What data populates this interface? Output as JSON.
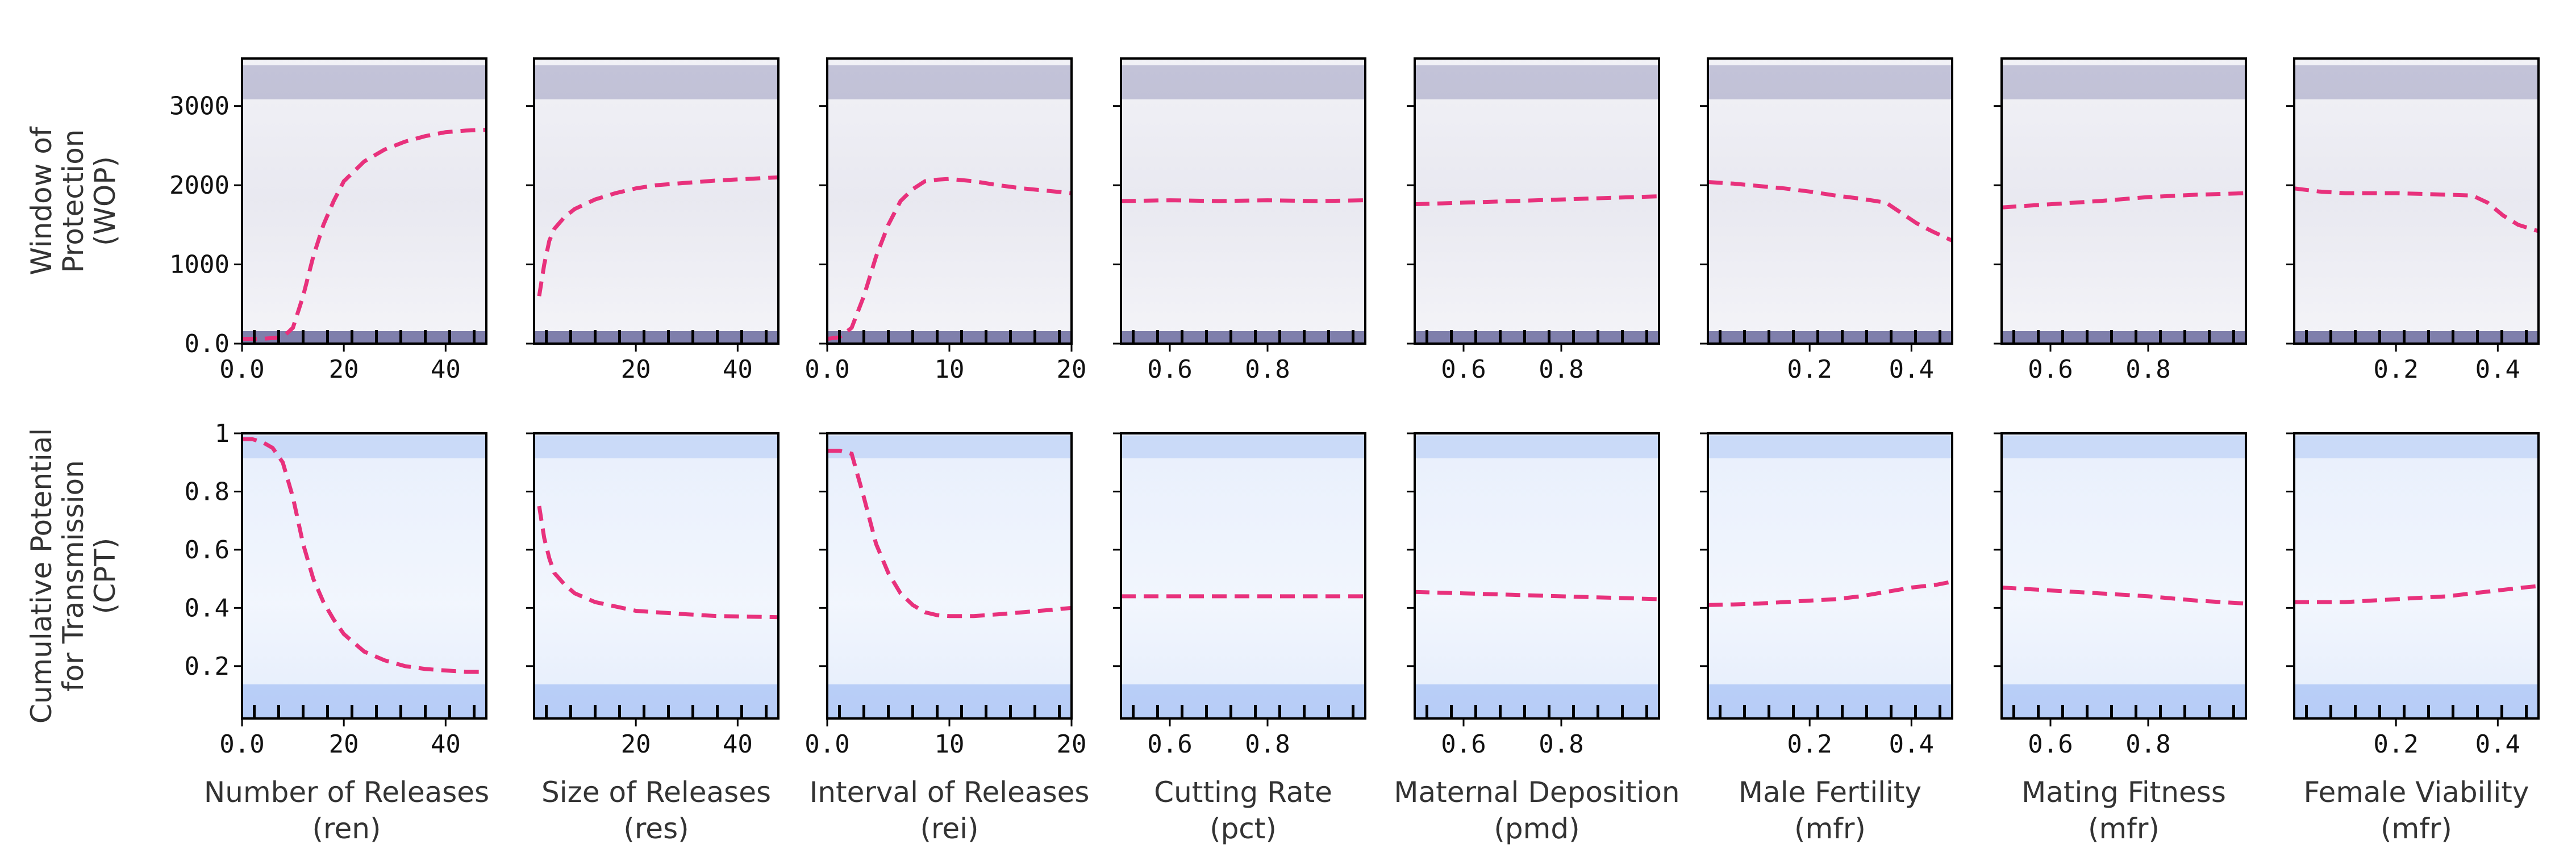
{
  "figure": {
    "row_labels": [
      [
        "Window of",
        "Protection",
        "(WOP)"
      ],
      [
        "Cumulative Potential",
        "for Transmission",
        "(CPT)"
      ]
    ],
    "column_labels": [
      [
        "Number of Releases",
        "(ren)"
      ],
      [
        "Size of Releases",
        "(res)"
      ],
      [
        "Interval of Releases",
        "(rei)"
      ],
      [
        "Cutting Rate",
        "(pct)"
      ],
      [
        "Maternal Deposition",
        "(pmd)"
      ],
      [
        "Male Fertility",
        "(mfr)"
      ],
      [
        "Mating Fitness",
        "(mfr)"
      ],
      [
        "Female Viability",
        "(mfr)"
      ]
    ],
    "colors": {
      "wop_traces": "#1f1f6e",
      "cpt_traces": "#3f7be8",
      "mean_line": "#e8317c",
      "frame": "#000000"
    }
  },
  "chart_data": [
    {
      "type": "line",
      "row": "WOP",
      "column": "Number of Releases (ren)",
      "xlim": [
        0,
        48
      ],
      "ylim": [
        0,
        3600
      ],
      "xticks": [
        0,
        20,
        40
      ],
      "yticks": [
        0,
        1000,
        2000,
        3000
      ],
      "series": [
        {
          "style": "dashed",
          "x": [
            0,
            4,
            8,
            10,
            12,
            14,
            16,
            18,
            20,
            24,
            28,
            32,
            36,
            40,
            44,
            48
          ],
          "y": [
            60,
            60,
            80,
            200,
            600,
            1100,
            1500,
            1800,
            2050,
            2300,
            2450,
            2550,
            2620,
            2670,
            2690,
            2700
          ]
        }
      ]
    },
    {
      "type": "line",
      "row": "WOP",
      "column": "Size of Releases (res)",
      "xlim": [
        0,
        48
      ],
      "ylim": [
        0,
        3600
      ],
      "xticks": [
        20,
        40
      ],
      "yticks": [
        0,
        1000,
        2000,
        3000
      ],
      "series": [
        {
          "style": "dashed",
          "x": [
            1,
            2,
            3,
            4,
            6,
            8,
            12,
            16,
            20,
            24,
            30,
            36,
            42,
            48
          ],
          "y": [
            600,
            1000,
            1300,
            1450,
            1600,
            1700,
            1820,
            1900,
            1960,
            2000,
            2030,
            2060,
            2080,
            2100
          ]
        }
      ]
    },
    {
      "type": "line",
      "row": "WOP",
      "column": "Interval of Releases (rei)",
      "xlim": [
        0,
        20
      ],
      "ylim": [
        0,
        3600
      ],
      "xticks": [
        0,
        10,
        20
      ],
      "yticks": [
        0,
        1000,
        2000,
        3000
      ],
      "series": [
        {
          "style": "dashed",
          "x": [
            0,
            1,
            2,
            3,
            4,
            5,
            6,
            7,
            8,
            9,
            10,
            12,
            14,
            16,
            18,
            20
          ],
          "y": [
            60,
            80,
            200,
            600,
            1100,
            1500,
            1800,
            1950,
            2050,
            2070,
            2080,
            2050,
            2000,
            1960,
            1930,
            1900
          ]
        }
      ]
    },
    {
      "type": "line",
      "row": "WOP",
      "column": "Cutting Rate (pct)",
      "xlim": [
        0.5,
        1.0
      ],
      "ylim": [
        0,
        3600
      ],
      "xticks": [
        0.6,
        0.8
      ],
      "yticks": [
        0,
        1000,
        2000,
        3000
      ],
      "series": [
        {
          "style": "dashed",
          "x": [
            0.5,
            0.6,
            0.7,
            0.8,
            0.9,
            1.0
          ],
          "y": [
            1800,
            1810,
            1800,
            1810,
            1800,
            1810
          ]
        }
      ]
    },
    {
      "type": "line",
      "row": "WOP",
      "column": "Maternal Deposition (pmd)",
      "xlim": [
        0.5,
        1.0
      ],
      "ylim": [
        0,
        3600
      ],
      "xticks": [
        0.6,
        0.8
      ],
      "yticks": [
        0,
        1000,
        2000,
        3000
      ],
      "series": [
        {
          "style": "dashed",
          "x": [
            0.5,
            0.6,
            0.7,
            0.8,
            0.9,
            1.0
          ],
          "y": [
            1760,
            1780,
            1800,
            1820,
            1840,
            1860
          ]
        }
      ]
    },
    {
      "type": "line",
      "row": "WOP",
      "column": "Male Fertility (mfr)",
      "xlim": [
        0,
        0.48
      ],
      "ylim": [
        0,
        3600
      ],
      "xticks": [
        0.2,
        0.4
      ],
      "yticks": [
        0,
        1000,
        2000,
        3000
      ],
      "series": [
        {
          "style": "dashed",
          "x": [
            0,
            0.05,
            0.1,
            0.15,
            0.2,
            0.25,
            0.3,
            0.35,
            0.38,
            0.41,
            0.44,
            0.48
          ],
          "y": [
            2040,
            2020,
            1990,
            1960,
            1920,
            1870,
            1830,
            1780,
            1650,
            1520,
            1420,
            1300
          ]
        }
      ]
    },
    {
      "type": "line",
      "row": "WOP",
      "column": "Mating Fitness (mfr)",
      "xlim": [
        0.5,
        1.0
      ],
      "ylim": [
        0,
        3600
      ],
      "xticks": [
        0.6,
        0.8
      ],
      "yticks": [
        0,
        1000,
        2000,
        3000
      ],
      "series": [
        {
          "style": "dashed",
          "x": [
            0.5,
            0.6,
            0.7,
            0.8,
            0.9,
            1.0
          ],
          "y": [
            1720,
            1760,
            1800,
            1850,
            1880,
            1900
          ]
        }
      ]
    },
    {
      "type": "line",
      "row": "WOP",
      "column": "Female Viability (mfr)",
      "xlim": [
        0,
        0.48
      ],
      "ylim": [
        0,
        3600
      ],
      "xticks": [
        0.2,
        0.4
      ],
      "yticks": [
        0,
        1000,
        2000,
        3000
      ],
      "series": [
        {
          "style": "dashed",
          "x": [
            0,
            0.05,
            0.1,
            0.15,
            0.2,
            0.25,
            0.3,
            0.35,
            0.38,
            0.41,
            0.44,
            0.48
          ],
          "y": [
            1960,
            1920,
            1900,
            1900,
            1900,
            1890,
            1880,
            1870,
            1780,
            1620,
            1500,
            1420
          ]
        }
      ]
    },
    {
      "type": "line",
      "row": "CPT",
      "column": "Number of Releases (ren)",
      "xlim": [
        0,
        48
      ],
      "ylim": [
        0.02,
        1.0
      ],
      "xticks": [
        0,
        20,
        40
      ],
      "yticks": [
        0.2,
        0.4,
        0.6,
        0.8,
        1.0
      ],
      "series": [
        {
          "style": "dashed",
          "x": [
            0,
            2,
            4,
            6,
            8,
            10,
            12,
            14,
            16,
            18,
            20,
            24,
            28,
            32,
            36,
            40,
            44,
            48
          ],
          "y": [
            0.98,
            0.98,
            0.97,
            0.95,
            0.9,
            0.78,
            0.62,
            0.5,
            0.42,
            0.36,
            0.31,
            0.25,
            0.22,
            0.2,
            0.19,
            0.185,
            0.18,
            0.18
          ]
        }
      ]
    },
    {
      "type": "line",
      "row": "CPT",
      "column": "Size of Releases (res)",
      "xlim": [
        0,
        48
      ],
      "ylim": [
        0.02,
        1.0
      ],
      "xticks": [
        20,
        40
      ],
      "yticks": [
        0.2,
        0.4,
        0.6,
        0.8,
        1.0
      ],
      "series": [
        {
          "style": "dashed",
          "x": [
            1,
            2,
            3,
            4,
            6,
            8,
            12,
            16,
            20,
            24,
            30,
            36,
            42,
            48
          ],
          "y": [
            0.75,
            0.64,
            0.57,
            0.52,
            0.48,
            0.45,
            0.42,
            0.405,
            0.39,
            0.385,
            0.378,
            0.372,
            0.37,
            0.368
          ]
        }
      ]
    },
    {
      "type": "line",
      "row": "CPT",
      "column": "Interval of Releases (rei)",
      "xlim": [
        0,
        20
      ],
      "ylim": [
        0.02,
        1.0
      ],
      "xticks": [
        0,
        10,
        20
      ],
      "yticks": [
        0.2,
        0.4,
        0.6,
        0.8,
        1.0
      ],
      "series": [
        {
          "style": "dashed",
          "x": [
            0,
            1,
            2,
            3,
            4,
            5,
            6,
            7,
            8,
            9,
            10,
            12,
            14,
            16,
            18,
            20
          ],
          "y": [
            0.94,
            0.94,
            0.93,
            0.78,
            0.62,
            0.52,
            0.45,
            0.41,
            0.385,
            0.375,
            0.372,
            0.372,
            0.378,
            0.385,
            0.392,
            0.4
          ]
        }
      ]
    },
    {
      "type": "line",
      "row": "CPT",
      "column": "Cutting Rate (pct)",
      "xlim": [
        0.5,
        1.0
      ],
      "ylim": [
        0.02,
        1.0
      ],
      "xticks": [
        0.6,
        0.8
      ],
      "yticks": [
        0.2,
        0.4,
        0.6,
        0.8,
        1.0
      ],
      "series": [
        {
          "style": "dashed",
          "x": [
            0.5,
            0.6,
            0.7,
            0.8,
            0.9,
            1.0
          ],
          "y": [
            0.44,
            0.44,
            0.44,
            0.44,
            0.44,
            0.44
          ]
        }
      ]
    },
    {
      "type": "line",
      "row": "CPT",
      "column": "Maternal Deposition (pmd)",
      "xlim": [
        0.5,
        1.0
      ],
      "ylim": [
        0.02,
        1.0
      ],
      "xticks": [
        0.6,
        0.8
      ],
      "yticks": [
        0.2,
        0.4,
        0.6,
        0.8,
        1.0
      ],
      "series": [
        {
          "style": "dashed",
          "x": [
            0.5,
            0.6,
            0.7,
            0.8,
            0.9,
            1.0
          ],
          "y": [
            0.455,
            0.45,
            0.445,
            0.44,
            0.435,
            0.43
          ]
        }
      ]
    },
    {
      "type": "line",
      "row": "CPT",
      "column": "Male Fertility (mfr)",
      "xlim": [
        0,
        0.48
      ],
      "ylim": [
        0.02,
        1.0
      ],
      "xticks": [
        0.2,
        0.4
      ],
      "yticks": [
        0.2,
        0.4,
        0.6,
        0.8,
        1.0
      ],
      "series": [
        {
          "style": "dashed",
          "x": [
            0,
            0.05,
            0.1,
            0.15,
            0.2,
            0.25,
            0.3,
            0.35,
            0.4,
            0.45,
            0.48
          ],
          "y": [
            0.41,
            0.412,
            0.415,
            0.42,
            0.425,
            0.43,
            0.44,
            0.455,
            0.47,
            0.48,
            0.49
          ]
        }
      ]
    },
    {
      "type": "line",
      "row": "CPT",
      "column": "Mating Fitness (mfr)",
      "xlim": [
        0.5,
        1.0
      ],
      "ylim": [
        0.02,
        1.0
      ],
      "xticks": [
        0.6,
        0.8
      ],
      "yticks": [
        0.2,
        0.4,
        0.6,
        0.8,
        1.0
      ],
      "series": [
        {
          "style": "dashed",
          "x": [
            0.5,
            0.6,
            0.7,
            0.8,
            0.9,
            1.0
          ],
          "y": [
            0.47,
            0.46,
            0.45,
            0.44,
            0.425,
            0.415
          ]
        }
      ]
    },
    {
      "type": "line",
      "row": "CPT",
      "column": "Female Viability (mfr)",
      "xlim": [
        0,
        0.48
      ],
      "ylim": [
        0.02,
        1.0
      ],
      "xticks": [
        0.2,
        0.4
      ],
      "yticks": [
        0.2,
        0.4,
        0.6,
        0.8,
        1.0
      ],
      "series": [
        {
          "style": "dashed",
          "x": [
            0,
            0.05,
            0.1,
            0.15,
            0.2,
            0.25,
            0.3,
            0.35,
            0.4,
            0.45,
            0.48
          ],
          "y": [
            0.42,
            0.42,
            0.42,
            0.425,
            0.43,
            0.435,
            0.44,
            0.45,
            0.46,
            0.47,
            0.475
          ]
        }
      ]
    }
  ]
}
